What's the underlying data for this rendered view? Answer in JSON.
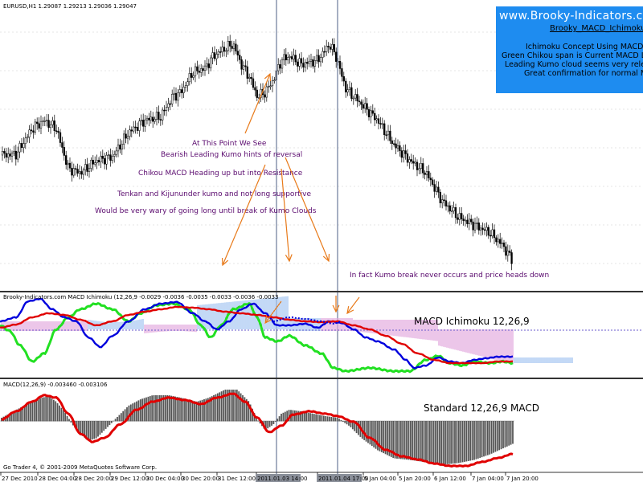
{
  "chart_window": {
    "symbol_header": "EURUSD,H1  1.29087 1.29213 1.29036 1.29047",
    "ichimoku_header": "Brooky-Indicators.com MACD Ichimoku (12,26,9 -0.0029 -0.0036 -0.0035 -0.0033 -0.0036 -0.0033",
    "macd_header": "MACD(12,26,9) -0.003460 -0.003106",
    "copyright": "Go Trader 4, © 2001-2009 MetaQuotes Software Corp.",
    "ichimoku_label": "MACD Ichimoku 12,26,9",
    "macd_label": "Standard 12,26,9 MACD"
  },
  "info_box": {
    "site": "www.Brooky-Indicators.com",
    "name": "Brooky_MACD_Ichimoku_V",
    "lines": [
      "Ichimoku Concept Using MACD Value",
      "Green Chikou span is Current MACD Li",
      "Leading Kumo cloud seems very releva",
      "Great confirmation for normal MAC"
    ],
    "bg_color": "#1e8cf0"
  },
  "annotations": {
    "n1": "At This Point We See",
    "n2": "Bearish Leading Kumo hints of reversal",
    "n3": "Chikou MACD Heading up but into Resistance",
    "n4": "Tenkan and Kijununder kumo and not long supportive",
    "n5": "Would be very wary of going long until break of Kumo Clouds",
    "n6": "In fact Kumo break never occurs and price heads down",
    "arrow_color": "#e87a1a"
  },
  "x_axis": {
    "ticks": [
      "27 Dec 2010",
      "28 Dec 04:00",
      "28 Dec 20:00",
      "29 Dec 12:00",
      "30 Dec 04:00",
      "30 Dec 20:00",
      "31 Dec 12:00",
      "2011.01.03 14:00",
      "2011.01.04 17:00",
      "5 Jan 04:00",
      "5 Jan 20:00",
      "6 Jan 12:00",
      "7 Jan 04:00",
      "7 Jan 20:00"
    ]
  },
  "colors": {
    "green_line": "#22e022",
    "blue_line": "#0000dd",
    "red_line": "#e00000",
    "macd_hist": "#555555",
    "cloud_blue": "#6aa0e8",
    "cloud_pink": "#d070c8"
  }
}
